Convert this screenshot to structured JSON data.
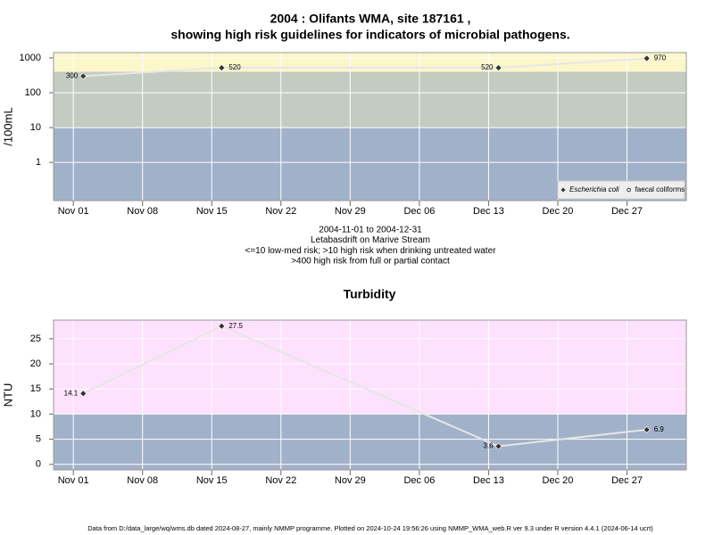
{
  "chart_data": [
    {
      "type": "line",
      "title": "2004 : Olifants WMA, site 187161 ,",
      "subtitle": "showing high risk guidelines for indicators of microbial pathogens.",
      "ylabel": "/100mL",
      "log_y": true,
      "grid": true,
      "x": [
        "2004-11-02",
        "2004-11-16",
        "2004-12-14",
        "2004-12-29"
      ],
      "xlim": [
        "2004-10-30",
        "2005-01-02"
      ],
      "xticks": [
        {
          "value": "2004-11-01",
          "label": "Nov 01"
        },
        {
          "value": "2004-11-08",
          "label": "Nov 08"
        },
        {
          "value": "2004-11-15",
          "label": "Nov 15"
        },
        {
          "value": "2004-11-22",
          "label": "Nov 22"
        },
        {
          "value": "2004-11-29",
          "label": "Nov 29"
        },
        {
          "value": "2004-12-06",
          "label": "Dec 06"
        },
        {
          "value": "2004-12-13",
          "label": "Dec 13"
        },
        {
          "value": "2004-12-20",
          "label": "Dec 20"
        },
        {
          "value": "2004-12-27",
          "label": "Dec 27"
        }
      ],
      "ylim": [
        0.08,
        1420
      ],
      "yticks": [
        1,
        10,
        100,
        1000
      ],
      "thresholds": [
        10,
        400
      ],
      "band_colors": [
        "#a1b1c9",
        "#c3ccc0",
        "#fcf6cb"
      ],
      "series": [
        {
          "name": "Escherichia coli",
          "color": "#333333",
          "line_color": "#e6e6e6",
          "marker": "diamond",
          "values": [
            300,
            520,
            520,
            970
          ]
        },
        {
          "name": "faecal coliforms",
          "color": "#333333",
          "line_color": "#e6e6e6",
          "marker": "circle",
          "values": [
            null,
            null,
            null,
            null
          ]
        }
      ],
      "legend": "bottom-right",
      "notes": [
        "2004-11-01 to 2004-12-31",
        "Letabasdrift on Marive Stream",
        "<=10 low-med risk; >10 high risk when drinking untreated water",
        ">400 high risk from full or partial contact"
      ]
    },
    {
      "type": "line",
      "title": "Turbidity",
      "ylabel": "NTU",
      "log_y": false,
      "grid": true,
      "x": [
        "2004-11-02",
        "2004-11-16",
        "2004-12-14",
        "2004-12-29"
      ],
      "xlim": [
        "2004-10-30",
        "2005-01-02"
      ],
      "xticks": [
        {
          "value": "2004-11-01",
          "label": "Nov 01"
        },
        {
          "value": "2004-11-08",
          "label": "Nov 08"
        },
        {
          "value": "2004-11-15",
          "label": "Nov 15"
        },
        {
          "value": "2004-11-22",
          "label": "Nov 22"
        },
        {
          "value": "2004-11-29",
          "label": "Nov 29"
        },
        {
          "value": "2004-12-06",
          "label": "Dec 06"
        },
        {
          "value": "2004-12-13",
          "label": "Dec 13"
        },
        {
          "value": "2004-12-20",
          "label": "Dec 20"
        },
        {
          "value": "2004-12-27",
          "label": "Dec 27"
        }
      ],
      "ylim": [
        -1.1,
        28.7
      ],
      "yticks": [
        0,
        5,
        10,
        15,
        20,
        25
      ],
      "thresholds": [
        10
      ],
      "band_colors": [
        "#a1b1c9",
        "#fde1fd"
      ],
      "series": [
        {
          "name": "Turbidity",
          "color": "#333333",
          "line_color": "#e6e6e6",
          "marker": "diamond",
          "values": [
            14.1,
            27.5,
            3.6,
            6.9
          ]
        }
      ]
    }
  ],
  "footer": "Data from D:/data_large/wq/wms.db dated 2024-08-27, mainly NMMP programme. Plotted on 2024-10-24 19:56:26 using NMMP_WMA_web.R ver 9.3 under R version 4.4.1 (2024-06-14 ucrt)"
}
